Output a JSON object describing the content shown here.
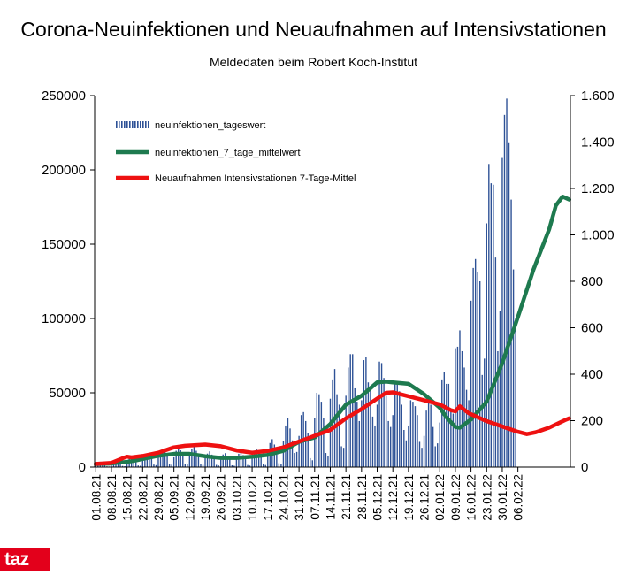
{
  "chart_data": {
    "type": "bar+line",
    "title": "Corona-Neuinfektionen und Neuaufnahmen auf Intensivstationen",
    "subtitle": "Meldedaten beim Robert Koch-Institut",
    "x_tick_labels": [
      "01.08.21",
      "08.08.21",
      "15.08.21",
      "22.08.21",
      "29.08.21",
      "05.09.21",
      "12.09.21",
      "19.09.21",
      "26.09.21",
      "03.10.21",
      "10.10.21",
      "17.10.21",
      "24.10.21",
      "31.10.21",
      "07.11.21",
      "14.11.21",
      "21.11.21",
      "28.11.21",
      "05.12.21",
      "12.12.21",
      "19.12.21",
      "26.12.21",
      "02.01.22",
      "09.01.22",
      "16.01.22",
      "23.01.22",
      "30.01.22",
      "06.02.22"
    ],
    "y_left": {
      "ylim": [
        0,
        250000
      ],
      "ticks": [
        0,
        50000,
        100000,
        150000,
        200000,
        250000
      ],
      "tick_labels": [
        "0",
        "50000",
        "100000",
        "150000",
        "200000",
        "250000"
      ]
    },
    "y_right": {
      "ylim": [
        0,
        1600
      ],
      "ticks": [
        0,
        200,
        400,
        600,
        800,
        1000,
        1200,
        1400,
        1600
      ],
      "tick_labels": [
        "0",
        "200",
        "400",
        "600",
        "800",
        "1.000",
        "1.200",
        "1.400",
        "1.600"
      ]
    },
    "series": [
      {
        "name": "neuinfektionen_tageswert",
        "type": "bar",
        "axis": "left",
        "color": "#2d5196",
        "weekly_values": [
          [
            2000,
            3300,
            3600,
            3100,
            1800,
            500,
            400
          ],
          [
            2500,
            4200,
            4500,
            3900,
            3100,
            800,
            600
          ],
          [
            3800,
            6000,
            6500,
            5600,
            4200,
            1100,
            900
          ],
          [
            5000,
            8400,
            9200,
            8100,
            6200,
            1700,
            1300
          ],
          [
            6800,
            10500,
            11600,
            10500,
            7800,
            2000,
            1600
          ],
          [
            6600,
            11000,
            13000,
            11300,
            8300,
            2200,
            1800
          ],
          [
            7200,
            11900,
            13700,
            11000,
            7700,
            2000,
            1500
          ],
          [
            6000,
            9100,
            10600,
            8400,
            6000,
            1500,
            1100
          ],
          [
            5000,
            8500,
            9400,
            7600,
            5400,
            1200,
            900
          ],
          [
            5300,
            9000,
            10100,
            8100,
            6000,
            1400,
            1000
          ],
          [
            6300,
            10800,
            12400,
            10300,
            7500,
            1800,
            1400
          ],
          [
            9800,
            16200,
            18800,
            15200,
            11000,
            2600,
            2000
          ],
          [
            17800,
            28000,
            33000,
            26000,
            18000,
            9500,
            10200
          ],
          [
            21000,
            35000,
            37000,
            31000,
            23000,
            6000,
            4600
          ],
          [
            33000,
            50000,
            49000,
            44000,
            33000,
            9500,
            7600
          ],
          [
            46000,
            59000,
            66000,
            49000,
            42000,
            14000,
            13000
          ],
          [
            48000,
            67000,
            76000,
            76000,
            53000,
            44000,
            31000
          ],
          [
            45000,
            72000,
            74000,
            57000,
            52000,
            34000,
            28000
          ],
          [
            42000,
            71000,
            70000,
            60000,
            48000,
            31000,
            27000
          ],
          [
            35000,
            57000,
            57000,
            51000,
            42000,
            25000,
            18000
          ],
          [
            28000,
            45000,
            44000,
            41000,
            35000,
            17000,
            13000
          ],
          [
            21000,
            38000,
            45000,
            42000,
            27000,
            14000,
            16000
          ],
          [
            30000,
            59000,
            64000,
            56000,
            56000,
            38000,
            36000
          ],
          [
            80000,
            81000,
            92000,
            78000,
            67000,
            52000,
            45000
          ],
          [
            112000,
            134000,
            140000,
            131000,
            125000,
            62000,
            73000
          ],
          [
            164000,
            204000,
            191000,
            190000,
            141000,
            78000,
            105000
          ],
          [
            208000,
            237000,
            248000,
            218000,
            180000,
            133000,
            100000
          ]
        ]
      },
      {
        "name": "neuinfektionen_7_tage_mittelwert",
        "type": "line",
        "axis": "left",
        "color": "#1e7a4f",
        "points": [
          [
            0,
            2000
          ],
          [
            3,
            2200
          ],
          [
            6,
            2300
          ],
          [
            10,
            3000
          ],
          [
            14,
            3500
          ],
          [
            18,
            4500
          ],
          [
            22,
            5800
          ],
          [
            28,
            7600
          ],
          [
            35,
            8900
          ],
          [
            42,
            8900
          ],
          [
            49,
            7300
          ],
          [
            56,
            6200
          ],
          [
            63,
            6200
          ],
          [
            70,
            7000
          ],
          [
            77,
            8200
          ],
          [
            84,
            11000
          ],
          [
            91,
            17000
          ],
          [
            98,
            20000
          ],
          [
            105,
            29000
          ],
          [
            112,
            42000
          ],
          [
            119,
            48000
          ],
          [
            126,
            57000
          ],
          [
            130,
            57500
          ],
          [
            133,
            57000
          ],
          [
            140,
            56000
          ],
          [
            147,
            49000
          ],
          [
            154,
            40000
          ],
          [
            157,
            33500
          ],
          [
            161,
            27000
          ],
          [
            163,
            26500
          ],
          [
            168,
            32000
          ],
          [
            175,
            44000
          ],
          [
            182,
            70000
          ],
          [
            189,
            101000
          ],
          [
            196,
            133000
          ],
          [
            203,
            160000
          ],
          [
            206,
            176000
          ],
          [
            209,
            182000
          ],
          [
            212,
            180000
          ]
        ]
      },
      {
        "name": "Neuaufnahmen Intensivstationen 7-Tage-Mittel",
        "type": "line",
        "axis": "right",
        "color": "#ee1111",
        "points": [
          [
            0,
            14
          ],
          [
            7,
            18
          ],
          [
            12,
            38
          ],
          [
            14,
            45
          ],
          [
            16,
            42
          ],
          [
            21,
            48
          ],
          [
            28,
            62
          ],
          [
            35,
            85
          ],
          [
            40,
            92
          ],
          [
            49,
            97
          ],
          [
            56,
            90
          ],
          [
            63,
            72
          ],
          [
            70,
            62
          ],
          [
            77,
            70
          ],
          [
            84,
            85
          ],
          [
            91,
            110
          ],
          [
            98,
            135
          ],
          [
            105,
            160
          ],
          [
            112,
            210
          ],
          [
            119,
            250
          ],
          [
            126,
            295
          ],
          [
            130,
            320
          ],
          [
            133,
            322
          ],
          [
            140,
            305
          ],
          [
            147,
            288
          ],
          [
            154,
            270
          ],
          [
            159,
            245
          ],
          [
            161,
            240
          ],
          [
            163,
            262
          ],
          [
            167,
            232
          ],
          [
            175,
            198
          ],
          [
            182,
            175
          ],
          [
            189,
            152
          ],
          [
            193,
            142
          ],
          [
            197,
            150
          ],
          [
            203,
            170
          ],
          [
            210,
            202
          ],
          [
            212,
            210
          ]
        ]
      }
    ]
  },
  "logo_text": "taz"
}
